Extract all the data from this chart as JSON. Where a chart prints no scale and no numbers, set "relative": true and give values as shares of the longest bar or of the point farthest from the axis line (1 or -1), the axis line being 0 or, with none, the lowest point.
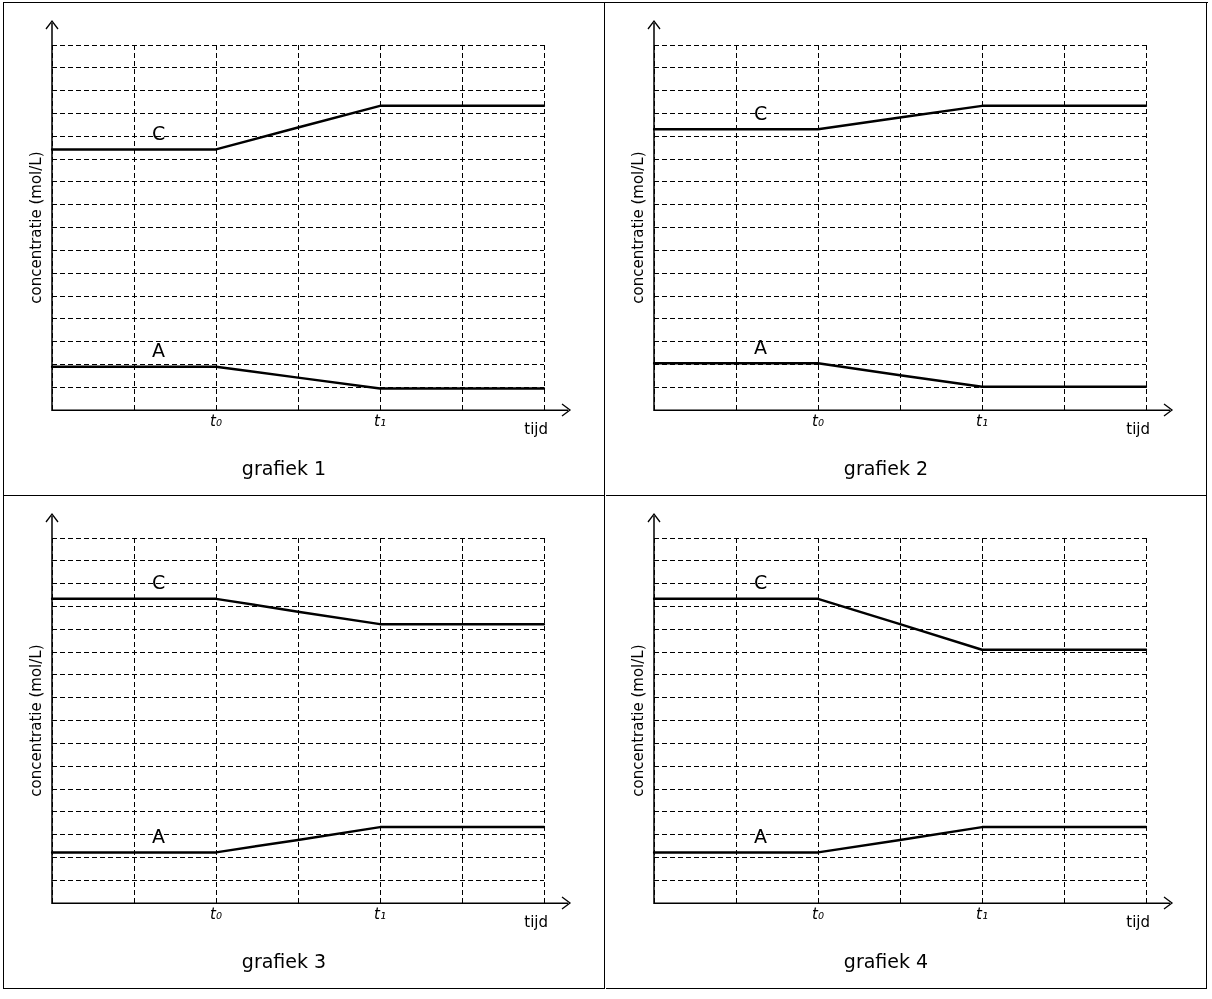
{
  "chart_data": [
    {
      "type": "line",
      "title": "grafiek 1",
      "xlabel": "tijd",
      "ylabel": "concentratie (mol/L)",
      "relative": true,
      "grid": true,
      "tick_labels": "x",
      "marker": "none",
      "line_style": "solid",
      "categories": [
        null,
        null,
        "t₀",
        null,
        "t₁",
        null,
        null
      ],
      "series": [
        {
          "name": "C",
          "color": "#000000",
          "values": [
            0.857,
            0.857,
            0.857,
            0.929,
            1,
            1,
            1
          ]
        },
        {
          "name": "A",
          "color": "#000000",
          "values": [
            0.143,
            0.143,
            0.143,
            0.107,
            0.071,
            0.071,
            0.071
          ]
        }
      ]
    },
    {
      "type": "line",
      "title": "grafiek 2",
      "xlabel": "tijd",
      "ylabel": "concentratie (mol/L)",
      "relative": true,
      "grid": true,
      "tick_labels": "x",
      "marker": "none",
      "line_style": "solid",
      "categories": [
        null,
        null,
        "t₀",
        null,
        "t₁",
        null,
        null
      ],
      "series": [
        {
          "name": "C",
          "color": "#000000",
          "values": [
            0.923,
            0.923,
            0.923,
            0.962,
            1,
            1,
            1
          ]
        },
        {
          "name": "A",
          "color": "#000000",
          "values": [
            0.154,
            0.154,
            0.154,
            0.115,
            0.077,
            0.077,
            0.077
          ]
        }
      ]
    },
    {
      "type": "line",
      "title": "grafiek 3",
      "xlabel": "tijd",
      "ylabel": "concentratie (mol/L)",
      "relative": true,
      "grid": true,
      "tick_labels": "x",
      "marker": "none",
      "line_style": "solid",
      "categories": [
        null,
        null,
        "t₀",
        null,
        "t₁",
        null,
        null
      ],
      "series": [
        {
          "name": "C",
          "color": "#000000",
          "values": [
            1,
            1,
            1,
            0.958,
            0.917,
            0.917,
            0.917
          ]
        },
        {
          "name": "A",
          "color": "#000000",
          "values": [
            0.167,
            0.167,
            0.167,
            0.208,
            0.25,
            0.25,
            0.25
          ]
        }
      ]
    },
    {
      "type": "line",
      "title": "grafiek 4",
      "xlabel": "tijd",
      "ylabel": "concentratie (mol/L)",
      "relative": true,
      "grid": true,
      "tick_labels": "x",
      "marker": "none",
      "line_style": "solid",
      "categories": [
        null,
        null,
        "t₀",
        null,
        "t₁",
        null,
        null
      ],
      "series": [
        {
          "name": "C",
          "color": "#000000",
          "values": [
            1,
            1,
            1,
            0.917,
            0.833,
            0.833,
            0.833
          ]
        },
        {
          "name": "A",
          "color": "#000000",
          "values": [
            0.167,
            0.167,
            0.167,
            0.208,
            0.25,
            0.25,
            0.25
          ]
        }
      ]
    }
  ]
}
